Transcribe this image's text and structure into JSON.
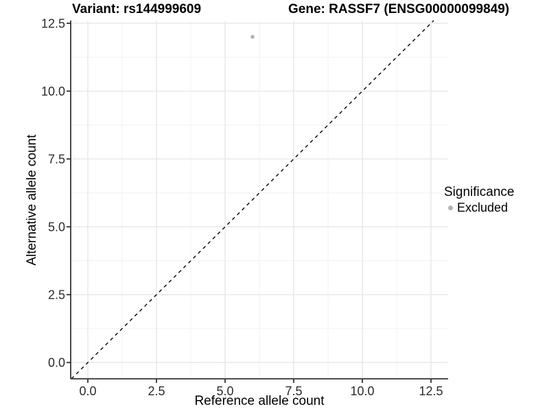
{
  "chart_data": {
    "type": "scatter",
    "title_left": "Variant: rs144999609",
    "title_right": "Gene: RASSF7 (ENSG00000099849)",
    "xlabel": "Reference allele count",
    "ylabel": "Alternative allele count",
    "x_tick_values": [
      0,
      2.5,
      5,
      7.5,
      10,
      12.5
    ],
    "x_tick_labels": [
      "0.0",
      "2.5",
      "5.0",
      "7.5",
      "10.0",
      "12.5"
    ],
    "y_tick_values": [
      0,
      2.5,
      5,
      7.5,
      10,
      12.5
    ],
    "y_tick_labels": [
      "0.0",
      "2.5",
      "5.0",
      "7.5",
      "10.0",
      "12.5"
    ],
    "x_minor_values": [
      1.25,
      3.75,
      6.25,
      8.75,
      11.25
    ],
    "y_minor_values": [
      1.25,
      3.75,
      6.25,
      8.75,
      11.25
    ],
    "xlim": [
      -0.625,
      13.125
    ],
    "ylim": [
      -0.6,
      12.6
    ],
    "grid": "major+minor",
    "background": "#ffffff",
    "points": [
      {
        "x": 6,
        "y": 12,
        "series": "Excluded"
      }
    ],
    "identity_line": {
      "slope": 1,
      "intercept": 0,
      "style": "dashed",
      "color": "#000000"
    },
    "legend": {
      "title": "Significance",
      "position": "right",
      "items": [
        {
          "label": "Excluded",
          "marker": "circle",
          "color": "#b2b2b2"
        }
      ]
    },
    "colors": {
      "point": "#b2b2b2",
      "grid_major": "#e7e7e7",
      "grid_minor": "#f3f3f3",
      "axis_line": "#333333",
      "tick_mark": "#333333",
      "tick_label": "#2b2b2b",
      "title": "#000000"
    }
  }
}
